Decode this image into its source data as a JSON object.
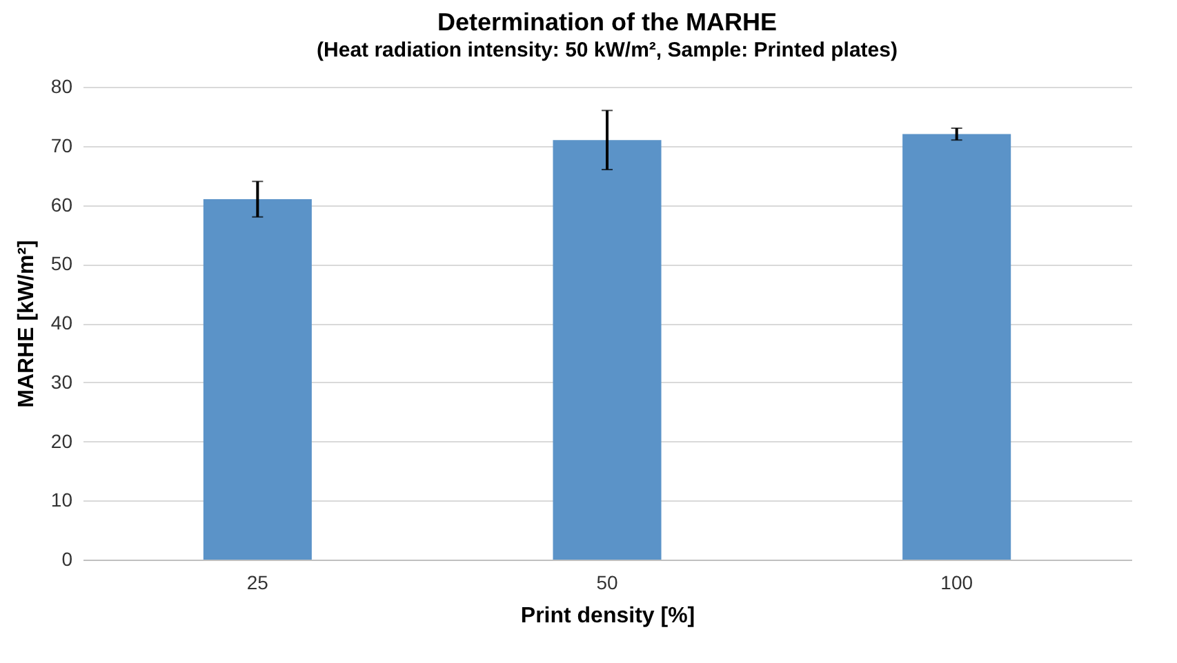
{
  "chart_data": {
    "type": "bar",
    "title": "Determination  of the MARHE",
    "subtitle": "(Heat radiation intensity: 50 kW/m², Sample: Printed plates)",
    "xlabel": "Print density [%]",
    "ylabel": "MARHE [kW/m²]",
    "categories": [
      "25",
      "50",
      "100"
    ],
    "values": [
      61,
      71,
      72
    ],
    "errors": [
      3,
      5,
      1
    ],
    "color": "#5b93c8",
    "ylim": [
      0,
      80
    ],
    "yticks": [
      0,
      10,
      20,
      30,
      40,
      50,
      60,
      70,
      80
    ],
    "grid": "y"
  }
}
